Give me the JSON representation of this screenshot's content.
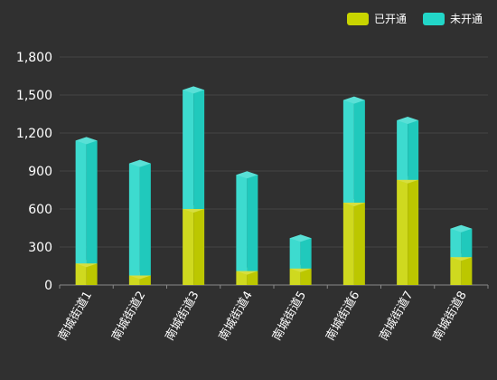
{
  "chart_data": {
    "type": "bar",
    "stacked": true,
    "categories": [
      "南城街道1",
      "南城街道2",
      "南城街道3",
      "南城街道4",
      "南城街道5",
      "南城街道6",
      "南城街道7",
      "南城街道8"
    ],
    "series": [
      {
        "name": "已开通",
        "color": "#c8d400",
        "values": [
          170,
          75,
          600,
          110,
          130,
          650,
          830,
          220
        ]
      },
      {
        "name": "未开通",
        "color": "#22d6c8",
        "values": [
          970,
          885,
          940,
          760,
          240,
          810,
          470,
          225
        ]
      }
    ],
    "y_ticks": [
      "0",
      "300",
      "600",
      "900",
      "1,200",
      "1,500",
      "1,800"
    ],
    "ylim": [
      0,
      1800
    ],
    "grid": true,
    "legend_position": "top-right"
  }
}
